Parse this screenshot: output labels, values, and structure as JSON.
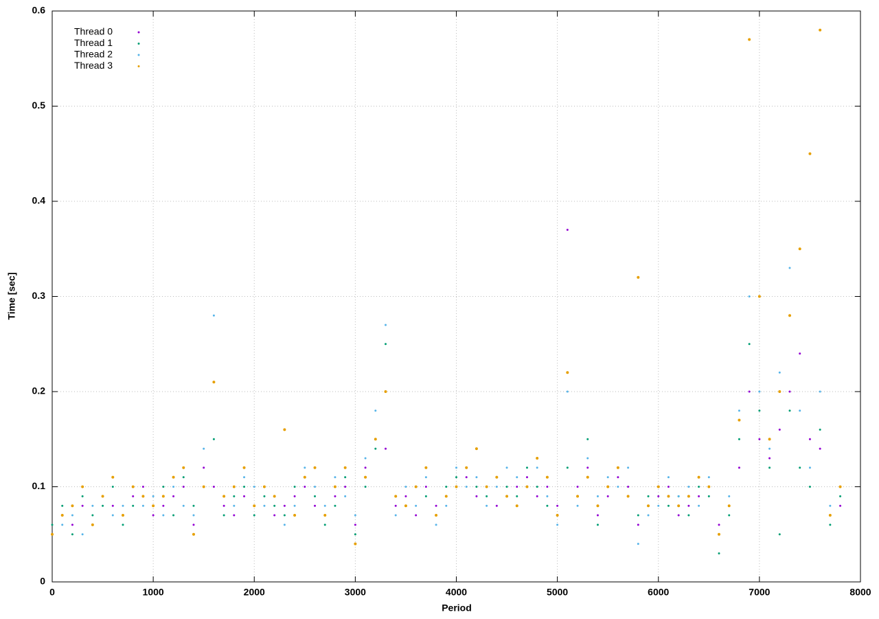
{
  "chart_data": {
    "type": "scatter",
    "xlabel": "Period",
    "ylabel": "Time [sec]",
    "x": [
      0,
      100,
      200,
      300,
      400,
      500,
      600,
      700,
      800,
      900,
      1000,
      1100,
      1200,
      1300,
      1400,
      1500,
      1600,
      1700,
      1800,
      1900,
      2000,
      2100,
      2200,
      2300,
      2400,
      2500,
      2600,
      2700,
      2800,
      2900,
      3000,
      3100,
      3200,
      3300,
      3400,
      3500,
      3600,
      3700,
      3800,
      3900,
      4000,
      4100,
      4200,
      4300,
      4400,
      4500,
      4600,
      4700,
      4800,
      4900,
      5000,
      5100,
      5200,
      5300,
      5400,
      5500,
      5600,
      5700,
      5800,
      5900,
      6000,
      6100,
      6200,
      6300,
      6400,
      6500,
      6600,
      6700,
      6800,
      6900,
      7000,
      7100,
      7200,
      7300,
      7400,
      7500,
      7600,
      7700,
      7800
    ],
    "series": [
      {
        "name": "Thread 0",
        "color": "#9400d3",
        "values": [
          0.05,
          0.07,
          0.06,
          0.08,
          0.06,
          0.09,
          0.08,
          0.07,
          0.09,
          0.1,
          0.07,
          0.08,
          0.09,
          0.1,
          0.06,
          0.12,
          0.1,
          0.08,
          0.07,
          0.09,
          0.08,
          0.1,
          0.07,
          0.08,
          0.09,
          0.1,
          0.08,
          0.07,
          0.09,
          0.1,
          0.06,
          0.12,
          0.15,
          0.14,
          0.08,
          0.09,
          0.07,
          0.1,
          0.08,
          0.09,
          0.1,
          0.11,
          0.09,
          0.1,
          0.08,
          0.09,
          0.1,
          0.11,
          0.09,
          0.1,
          0.08,
          0.37,
          0.1,
          0.12,
          0.07,
          0.09,
          0.11,
          0.1,
          0.06,
          0.08,
          0.09,
          0.1,
          0.07,
          0.08,
          0.09,
          0.1,
          0.06,
          0.08,
          0.12,
          0.2,
          0.15,
          0.13,
          0.16,
          0.2,
          0.24,
          0.15,
          0.14,
          0.07,
          0.08
        ]
      },
      {
        "name": "Thread 1",
        "color": "#009e73",
        "values": [
          0.06,
          0.08,
          0.05,
          0.09,
          0.07,
          0.08,
          0.1,
          0.06,
          0.08,
          0.09,
          0.08,
          0.1,
          0.07,
          0.11,
          0.08,
          0.1,
          0.15,
          0.07,
          0.09,
          0.1,
          0.07,
          0.09,
          0.08,
          0.07,
          0.1,
          0.11,
          0.09,
          0.06,
          0.08,
          0.11,
          0.05,
          0.1,
          0.14,
          0.25,
          0.09,
          0.08,
          0.1,
          0.09,
          0.07,
          0.1,
          0.11,
          0.12,
          0.1,
          0.09,
          0.11,
          0.1,
          0.09,
          0.12,
          0.1,
          0.08,
          0.07,
          0.12,
          0.09,
          0.15,
          0.06,
          0.1,
          0.12,
          0.09,
          0.07,
          0.09,
          0.1,
          0.08,
          0.09,
          0.07,
          0.1,
          0.09,
          0.03,
          0.07,
          0.15,
          0.25,
          0.18,
          0.12,
          0.05,
          0.18,
          0.12,
          0.1,
          0.16,
          0.06,
          0.09
        ]
      },
      {
        "name": "Thread 2",
        "color": "#56b4e9",
        "values": [
          0.05,
          0.06,
          0.07,
          0.05,
          0.08,
          0.09,
          0.07,
          0.08,
          0.1,
          0.08,
          0.09,
          0.07,
          0.1,
          0.08,
          0.07,
          0.14,
          0.28,
          0.09,
          0.08,
          0.11,
          0.1,
          0.08,
          0.09,
          0.06,
          0.08,
          0.12,
          0.1,
          0.08,
          0.11,
          0.09,
          0.07,
          0.13,
          0.18,
          0.27,
          0.07,
          0.1,
          0.08,
          0.11,
          0.06,
          0.08,
          0.12,
          0.1,
          0.11,
          0.08,
          0.1,
          0.12,
          0.11,
          0.1,
          0.12,
          0.09,
          0.06,
          0.2,
          0.08,
          0.13,
          0.09,
          0.11,
          0.1,
          0.12,
          0.04,
          0.07,
          0.08,
          0.11,
          0.09,
          0.1,
          0.08,
          0.11,
          0.05,
          0.09,
          0.18,
          0.3,
          0.2,
          0.14,
          0.22,
          0.33,
          0.18,
          0.12,
          0.2,
          0.08,
          0.1
        ]
      },
      {
        "name": "Thread 3",
        "color": "#e69f00",
        "values": [
          0.05,
          0.07,
          0.08,
          0.1,
          0.06,
          0.09,
          0.11,
          0.07,
          0.1,
          0.09,
          0.08,
          0.09,
          0.11,
          0.12,
          0.05,
          0.1,
          0.21,
          0.09,
          0.1,
          0.12,
          0.08,
          0.1,
          0.09,
          0.16,
          0.07,
          0.11,
          0.12,
          0.07,
          0.1,
          0.12,
          0.04,
          0.11,
          0.15,
          0.2,
          0.09,
          0.08,
          0.1,
          0.12,
          0.07,
          0.09,
          0.1,
          0.12,
          0.14,
          0.1,
          0.11,
          0.09,
          0.08,
          0.1,
          0.13,
          0.11,
          0.07,
          0.22,
          0.09,
          0.11,
          0.08,
          0.1,
          0.12,
          0.09,
          0.32,
          0.08,
          0.1,
          0.09,
          0.08,
          0.09,
          0.11,
          0.1,
          0.05,
          0.08,
          0.17,
          0.57,
          0.3,
          0.15,
          0.2,
          0.28,
          0.35,
          0.45,
          0.58,
          0.07,
          0.1
        ]
      }
    ],
    "xlim": [
      0,
      8000
    ],
    "ylim": [
      0,
      0.6
    ],
    "xticks": [
      0,
      1000,
      2000,
      3000,
      4000,
      5000,
      6000,
      7000,
      8000
    ],
    "yticks": [
      0,
      0.1,
      0.2,
      0.3,
      0.4,
      0.5,
      0.6
    ],
    "grid": true,
    "legend": "top-left"
  }
}
